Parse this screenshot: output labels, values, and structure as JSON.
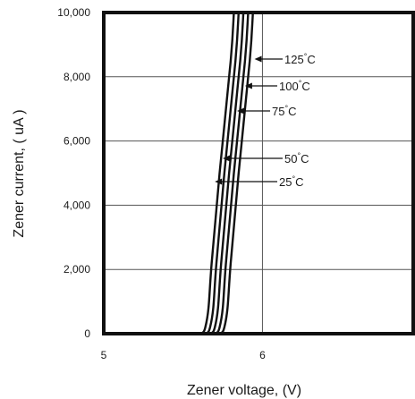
{
  "chart_data": {
    "type": "line",
    "title": "",
    "xlabel": "Zener voltage, (V)",
    "ylabel": "Zener current, ( uA )",
    "xlim": [
      5,
      6.95
    ],
    "ylim": [
      0,
      10000
    ],
    "x_ticks": [
      {
        "value": 5,
        "label": "5"
      },
      {
        "value": 6,
        "label": "6"
      }
    ],
    "y_ticks": [
      {
        "value": 0,
        "label": "0"
      },
      {
        "value": 2000,
        "label": "2,000"
      },
      {
        "value": 4000,
        "label": "4,000"
      },
      {
        "value": 6000,
        "label": "6,000"
      },
      {
        "value": 8000,
        "label": "8,000"
      },
      {
        "value": 10000,
        "label": "10,000"
      }
    ],
    "grid": true,
    "series": [
      {
        "temp": "25",
        "points": [
          [
            5.45,
            0
          ],
          [
            5.58,
            0
          ],
          [
            5.62,
            20
          ],
          [
            5.64,
            200
          ],
          [
            5.66,
            800
          ],
          [
            5.68,
            2200
          ],
          [
            5.73,
            5000
          ],
          [
            5.8,
            8500
          ],
          [
            5.82,
            10000
          ]
        ]
      },
      {
        "temp": "50",
        "points": [
          [
            5.45,
            0
          ],
          [
            5.61,
            0
          ],
          [
            5.65,
            20
          ],
          [
            5.67,
            200
          ],
          [
            5.69,
            800
          ],
          [
            5.71,
            2200
          ],
          [
            5.76,
            5000
          ],
          [
            5.83,
            8500
          ],
          [
            5.85,
            10000
          ]
        ]
      },
      {
        "temp": "75",
        "points": [
          [
            5.45,
            0
          ],
          [
            5.64,
            0
          ],
          [
            5.68,
            20
          ],
          [
            5.7,
            200
          ],
          [
            5.72,
            800
          ],
          [
            5.74,
            2200
          ],
          [
            5.79,
            5000
          ],
          [
            5.86,
            8500
          ],
          [
            5.88,
            10000
          ]
        ]
      },
      {
        "temp": "100",
        "points": [
          [
            5.45,
            0
          ],
          [
            5.67,
            0
          ],
          [
            5.71,
            20
          ],
          [
            5.73,
            200
          ],
          [
            5.75,
            800
          ],
          [
            5.77,
            2200
          ],
          [
            5.82,
            5000
          ],
          [
            5.89,
            8500
          ],
          [
            5.91,
            10000
          ]
        ]
      },
      {
        "temp": "125",
        "points": [
          [
            5.45,
            0
          ],
          [
            5.7,
            0
          ],
          [
            5.74,
            20
          ],
          [
            5.76,
            200
          ],
          [
            5.78,
            800
          ],
          [
            5.8,
            2200
          ],
          [
            5.85,
            5000
          ],
          [
            5.92,
            8500
          ],
          [
            5.94,
            10000
          ]
        ]
      }
    ],
    "annotations": [
      {
        "text": "125",
        "unit": "°C",
        "arrow_to": [
          5.95,
          8600
        ]
      },
      {
        "text": "100",
        "unit": "°C",
        "arrow_to": [
          5.89,
          7900
        ]
      },
      {
        "text": "75",
        "unit": "°C",
        "arrow_to": [
          5.84,
          6900
        ]
      },
      {
        "text": "50",
        "unit": "°C",
        "arrow_to": [
          5.75,
          5500
        ]
      },
      {
        "text": "25",
        "unit": "°C",
        "arrow_to": [
          5.7,
          4700
        ]
      }
    ],
    "colors": {
      "line": "#111111",
      "grid": "#555555",
      "frame": "#111111",
      "background": "#ffffff"
    }
  }
}
